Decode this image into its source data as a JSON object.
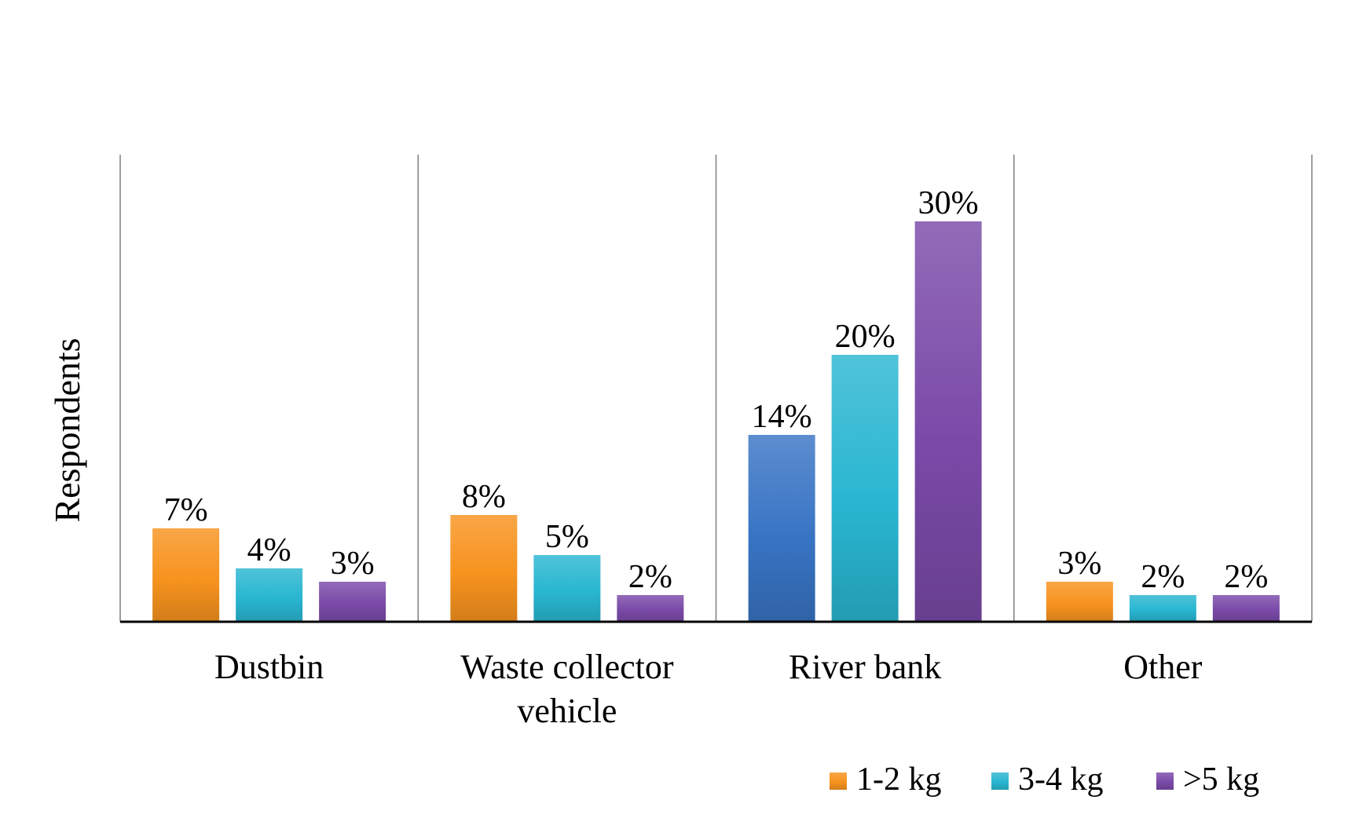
{
  "chart_data": {
    "type": "bar",
    "categories": [
      [
        "Dustbin"
      ],
      [
        "Waste collector",
        "vehicle"
      ],
      [
        "River bank"
      ],
      [
        "Other"
      ]
    ],
    "series": [
      {
        "name": "1-2 kg",
        "color": "#f7931e",
        "values": [
          7,
          8,
          14,
          3
        ],
        "labels": [
          "7%",
          "8%",
          "14%",
          "3%"
        ]
      },
      {
        "name": "3-4 kg",
        "color": "#29b6d1",
        "values": [
          4,
          5,
          20,
          2
        ],
        "labels": [
          "4%",
          "5%",
          "20%",
          "2%"
        ]
      },
      {
        "name": ">5 kg",
        "color": "#7a4aa8",
        "values": [
          3,
          2,
          30,
          2
        ],
        "labels": [
          "3%",
          "2%",
          "30%",
          "2%"
        ]
      }
    ],
    "point_overrides": [
      {
        "series": 0,
        "category": 2,
        "color": "#3874c4"
      }
    ],
    "title": "",
    "xlabel": "",
    "ylabel": "Respondents",
    "ylim": [
      0,
      35
    ],
    "grid": false,
    "category_dividers": true,
    "legend_position": "bottom-right"
  }
}
